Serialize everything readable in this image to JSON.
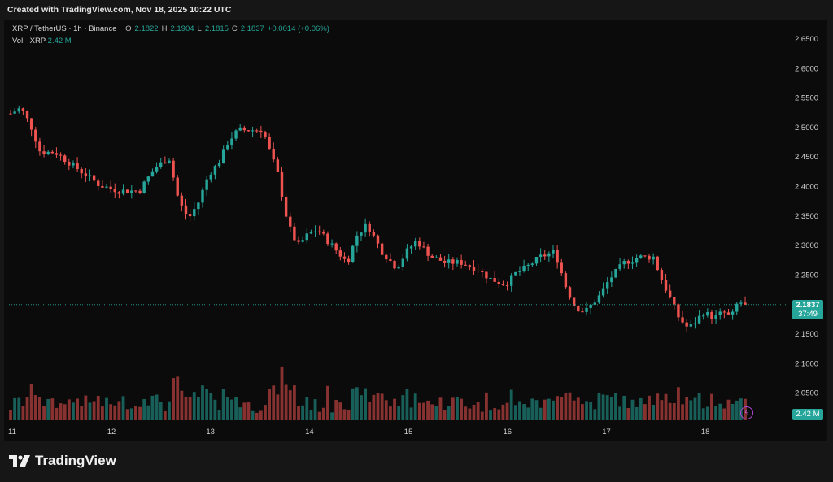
{
  "header": {
    "created_text": "Created with TradingView.com, Nov 18, 2025 10:22 UTC"
  },
  "legend": {
    "symbol": "XRP / TetherUS · 1h · Binance",
    "o_label": "O",
    "o_value": "2.1822",
    "h_label": "H",
    "h_value": "2.1904",
    "l_label": "L",
    "l_value": "2.1815",
    "c_label": "C",
    "c_value": "2.1837",
    "change": "+0.0014 (+0.06%)"
  },
  "volume_legend": {
    "label": "Vol · XRP",
    "value": "2.42 M"
  },
  "price_tag": {
    "price": "2.1837",
    "countdown": "37:49"
  },
  "volume_tag": "2.42 M",
  "brand": "TradingView",
  "colors": {
    "up": "#26a69a",
    "down": "#ef5350",
    "background": "#0b0b0b"
  },
  "chart_data": {
    "type": "candlestick",
    "symbol": "XRP / TetherUS",
    "interval": "1h",
    "exchange": "Binance",
    "last_price": 2.1837,
    "y_ticks": [
      "2.6500",
      "2.6000",
      "2.5500",
      "2.5000",
      "2.4500",
      "2.4000",
      "2.3500",
      "2.3000",
      "2.2500",
      "2.2000",
      "2.1500",
      "2.1000",
      "2.0500"
    ],
    "ylim": [
      2.02,
      2.665
    ],
    "x_ticks": [
      "11",
      "12",
      "13",
      "14",
      "15",
      "16",
      "17",
      "18"
    ],
    "close_path": [
      [
        11.0,
        2.53
      ],
      [
        11.1,
        2.54
      ],
      [
        11.2,
        2.51
      ],
      [
        11.3,
        2.46
      ],
      [
        11.45,
        2.46
      ],
      [
        11.6,
        2.44
      ],
      [
        11.75,
        2.42
      ],
      [
        11.9,
        2.4
      ],
      [
        12.1,
        2.39
      ],
      [
        12.3,
        2.39
      ],
      [
        12.45,
        2.43
      ],
      [
        12.6,
        2.45
      ],
      [
        12.7,
        2.37
      ],
      [
        12.8,
        2.34
      ],
      [
        12.9,
        2.37
      ],
      [
        13.0,
        2.42
      ],
      [
        13.1,
        2.44
      ],
      [
        13.2,
        2.48
      ],
      [
        13.3,
        2.5
      ],
      [
        13.45,
        2.5
      ],
      [
        13.55,
        2.5
      ],
      [
        13.62,
        2.46
      ],
      [
        13.7,
        2.42
      ],
      [
        13.8,
        2.33
      ],
      [
        13.9,
        2.29
      ],
      [
        14.0,
        2.31
      ],
      [
        14.1,
        2.32
      ],
      [
        14.2,
        2.3
      ],
      [
        14.3,
        2.28
      ],
      [
        14.4,
        2.26
      ],
      [
        14.5,
        2.31
      ],
      [
        14.6,
        2.33
      ],
      [
        14.75,
        2.28
      ],
      [
        14.9,
        2.25
      ],
      [
        15.0,
        2.28
      ],
      [
        15.1,
        2.3
      ],
      [
        15.25,
        2.27
      ],
      [
        15.4,
        2.26
      ],
      [
        15.55,
        2.26
      ],
      [
        15.7,
        2.25
      ],
      [
        15.85,
        2.23
      ],
      [
        16.0,
        2.22
      ],
      [
        16.1,
        2.24
      ],
      [
        16.2,
        2.25
      ],
      [
        16.35,
        2.27
      ],
      [
        16.5,
        2.28
      ],
      [
        16.6,
        2.22
      ],
      [
        16.7,
        2.18
      ],
      [
        16.8,
        2.17
      ],
      [
        16.95,
        2.2
      ],
      [
        17.05,
        2.23
      ],
      [
        17.2,
        2.26
      ],
      [
        17.35,
        2.27
      ],
      [
        17.5,
        2.27
      ],
      [
        17.55,
        2.24
      ],
      [
        17.65,
        2.2
      ],
      [
        17.75,
        2.16
      ],
      [
        17.85,
        2.14
      ],
      [
        18.0,
        2.17
      ],
      [
        18.1,
        2.16
      ],
      [
        18.2,
        2.17
      ],
      [
        18.28,
        2.16
      ],
      [
        18.35,
        2.19
      ],
      [
        18.42,
        2.1837
      ]
    ],
    "volume_range": "2.42 M (last bar)",
    "grid": false,
    "legend": "top-left"
  }
}
